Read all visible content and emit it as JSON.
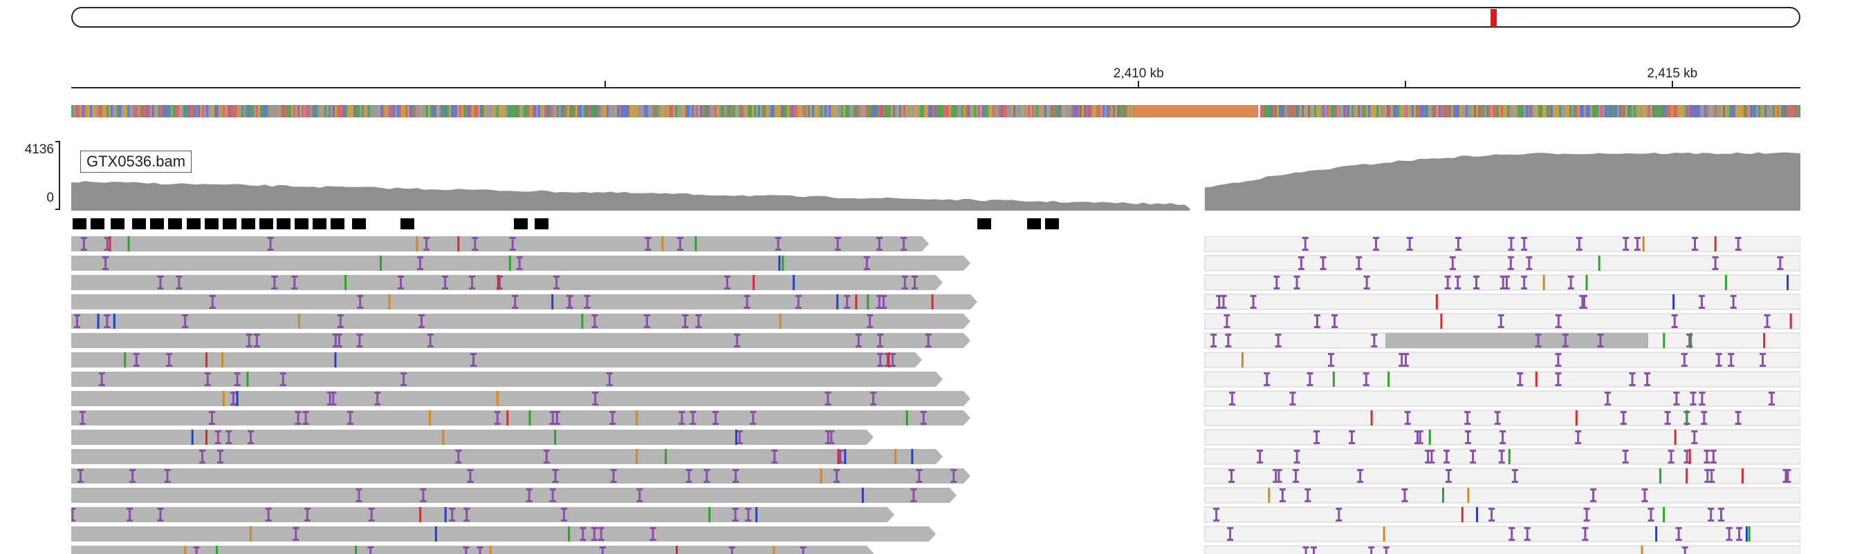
{
  "locus": {
    "ruler_ticks": [
      {
        "label": "",
        "kb": 2405.0
      },
      {
        "label": "2,410 kb",
        "kb": 2410.0
      },
      {
        "label": "",
        "kb": 2412.5
      },
      {
        "label": "2,415 kb",
        "kb": 2415.0
      }
    ],
    "view_start_kb": 2400.0,
    "view_end_kb": 2416.2
  },
  "ideogram": {
    "marker_fraction": 0.823,
    "marker_color": "#e8141a"
  },
  "sequence_track": {
    "highlight_start_kb": 2409.96,
    "highlight_end_kb": 2411.12,
    "highlight_color": "#d98a55"
  },
  "coverage_track": {
    "name": "GTX0536.bam",
    "range_max": "4136",
    "range_min": "0",
    "fill_color": "#8f8f8f"
  },
  "alignments": {
    "read_color": "#b5b5b5",
    "light_read_color": "#f2f2f2",
    "insertion_color": "#8b4fa8",
    "mismatch_colors": [
      "#d62b2b",
      "#2aa52a",
      "#2040c8",
      "#d08a20"
    ],
    "gap_start_kb": 2410.48,
    "gap_end_kb": 2410.62
  },
  "feature_track": {
    "color": "#000000"
  }
}
